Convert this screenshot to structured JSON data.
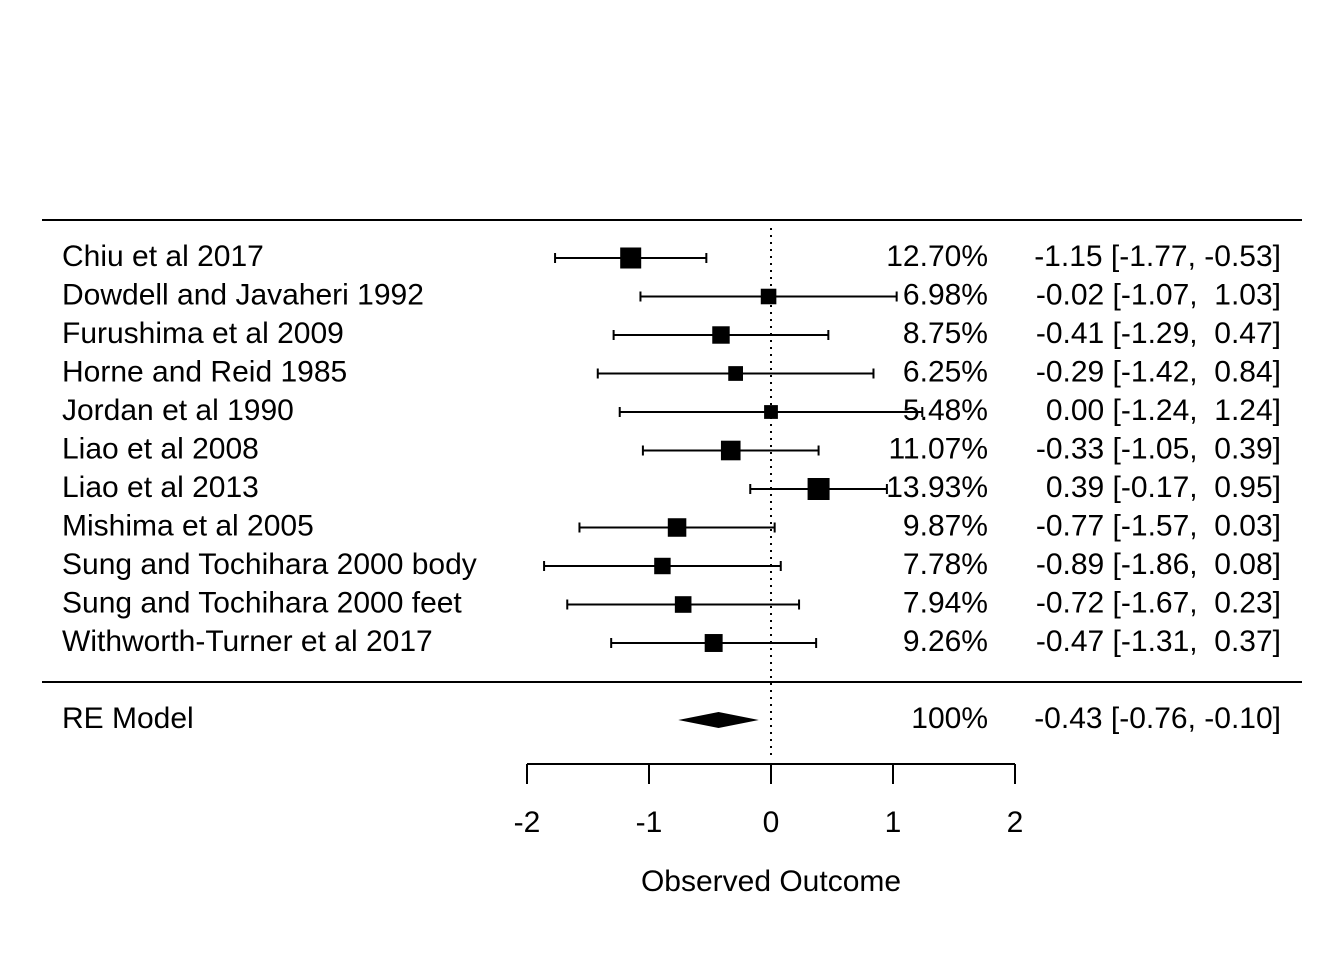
{
  "chart_data": {
    "type": "forest",
    "xlabel": "Observed Outcome",
    "xlim": [
      -2,
      2
    ],
    "x_ticks": [
      -2,
      -1,
      0,
      1,
      2
    ],
    "x_tick_labels": [
      "-2",
      "-1",
      "0",
      "1",
      "2"
    ],
    "reference_line": 0,
    "studies": [
      {
        "label": "Chiu et al 2017",
        "estimate": -1.15,
        "ci_low": -1.77,
        "ci_high": -0.53,
        "weight": 12.7,
        "weight_text": "12.70%",
        "result_text": "-1.15 [-1.77, -0.53]"
      },
      {
        "label": "Dowdell and Javaheri 1992",
        "estimate": -0.02,
        "ci_low": -1.07,
        "ci_high": 1.03,
        "weight": 6.98,
        "weight_text": "6.98%",
        "result_text": "-0.02 [-1.07,  1.03]"
      },
      {
        "label": "Furushima et al 2009",
        "estimate": -0.41,
        "ci_low": -1.29,
        "ci_high": 0.47,
        "weight": 8.75,
        "weight_text": "8.75%",
        "result_text": "-0.41 [-1.29,  0.47]"
      },
      {
        "label": "Horne and Reid 1985",
        "estimate": -0.29,
        "ci_low": -1.42,
        "ci_high": 0.84,
        "weight": 6.25,
        "weight_text": "6.25%",
        "result_text": "-0.29 [-1.42,  0.84]"
      },
      {
        "label": "Jordan et al 1990",
        "estimate": 0.0,
        "ci_low": -1.24,
        "ci_high": 1.24,
        "weight": 5.48,
        "weight_text": "5.48%",
        "result_text": "0.00 [-1.24,  1.24]"
      },
      {
        "label": "Liao et al 2008",
        "estimate": -0.33,
        "ci_low": -1.05,
        "ci_high": 0.39,
        "weight": 11.07,
        "weight_text": "11.07%",
        "result_text": "-0.33 [-1.05,  0.39]"
      },
      {
        "label": "Liao et al 2013",
        "estimate": 0.39,
        "ci_low": -0.17,
        "ci_high": 0.95,
        "weight": 13.93,
        "weight_text": "13.93%",
        "result_text": "0.39 [-0.17,  0.95]"
      },
      {
        "label": "Mishima et al 2005",
        "estimate": -0.77,
        "ci_low": -1.57,
        "ci_high": 0.03,
        "weight": 9.87,
        "weight_text": "9.87%",
        "result_text": "-0.77 [-1.57,  0.03]"
      },
      {
        "label": "Sung and Tochihara 2000 body",
        "estimate": -0.89,
        "ci_low": -1.86,
        "ci_high": 0.08,
        "weight": 7.78,
        "weight_text": "7.78%",
        "result_text": "-0.89 [-1.86,  0.08]"
      },
      {
        "label": "Sung and Tochihara 2000 feet",
        "estimate": -0.72,
        "ci_low": -1.67,
        "ci_high": 0.23,
        "weight": 7.94,
        "weight_text": "7.94%",
        "result_text": "-0.72 [-1.67,  0.23]"
      },
      {
        "label": "Withworth-Turner et al 2017",
        "estimate": -0.47,
        "ci_low": -1.31,
        "ci_high": 0.37,
        "weight": 9.26,
        "weight_text": "9.26%",
        "result_text": "-0.47 [-1.31,  0.37]"
      }
    ],
    "summary": {
      "label": "RE Model",
      "estimate": -0.43,
      "ci_low": -0.76,
      "ci_high": -0.1,
      "weight_text": "100%",
      "result_text": "-0.43 [-0.76, -0.10]"
    }
  }
}
